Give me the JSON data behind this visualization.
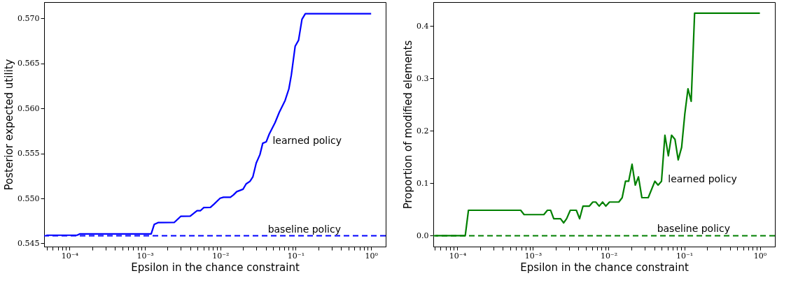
{
  "chart_data": [
    {
      "type": "line",
      "xlabel": "Epsilon in the chance constraint",
      "ylabel": "Posterior expected utility",
      "log": "x",
      "grid": false,
      "marker": "none",
      "xlim": [
        4.6e-05,
        1.56
      ],
      "ylim": [
        0.54465,
        0.5718
      ],
      "xticks": [
        {
          "value": 0.0001,
          "label": "10⁻⁴"
        },
        {
          "value": 0.001,
          "label": "10⁻³"
        },
        {
          "value": 0.01,
          "label": "10⁻²"
        },
        {
          "value": 0.1,
          "label": "10⁻¹"
        },
        {
          "value": 1,
          "label": "10⁰"
        },
        {
          "value": 5e-05,
          "label": null
        },
        {
          "value": 6e-05,
          "label": null
        },
        {
          "value": 7e-05,
          "label": null
        },
        {
          "value": 8e-05,
          "label": null
        },
        {
          "value": 9e-05,
          "label": null
        },
        {
          "value": 0.0002,
          "label": null
        },
        {
          "value": 0.0003,
          "label": null
        },
        {
          "value": 0.0004,
          "label": null
        },
        {
          "value": 0.0005,
          "label": null
        },
        {
          "value": 0.0006,
          "label": null
        },
        {
          "value": 0.0007,
          "label": null
        },
        {
          "value": 0.0008,
          "label": null
        },
        {
          "value": 0.0009,
          "label": null
        },
        {
          "value": 0.002,
          "label": null
        },
        {
          "value": 0.003,
          "label": null
        },
        {
          "value": 0.004,
          "label": null
        },
        {
          "value": 0.005,
          "label": null
        },
        {
          "value": 0.006,
          "label": null
        },
        {
          "value": 0.007,
          "label": null
        },
        {
          "value": 0.008,
          "label": null
        },
        {
          "value": 0.009,
          "label": null
        },
        {
          "value": 0.02,
          "label": null
        },
        {
          "value": 0.03,
          "label": null
        },
        {
          "value": 0.04,
          "label": null
        },
        {
          "value": 0.05,
          "label": null
        },
        {
          "value": 0.06,
          "label": null
        },
        {
          "value": 0.07,
          "label": null
        },
        {
          "value": 0.08,
          "label": null
        },
        {
          "value": 0.09,
          "label": null
        },
        {
          "value": 0.2,
          "label": null
        },
        {
          "value": 0.3,
          "label": null
        },
        {
          "value": 0.4,
          "label": null
        },
        {
          "value": 0.5,
          "label": null
        },
        {
          "value": 0.6,
          "label": null
        },
        {
          "value": 0.7,
          "label": null
        },
        {
          "value": 0.8,
          "label": null
        },
        {
          "value": 0.9,
          "label": null
        }
      ],
      "yticks": [
        {
          "value": 0.545,
          "label": "0.545"
        },
        {
          "value": 0.55,
          "label": "0.550"
        },
        {
          "value": 0.555,
          "label": "0.555"
        },
        {
          "value": 0.56,
          "label": "0.560"
        },
        {
          "value": 0.565,
          "label": "0.565"
        },
        {
          "value": 0.57,
          "label": "0.570"
        }
      ],
      "series": [
        {
          "color": "#0000ff",
          "line_style": "solid",
          "x": [
            4.93e-05,
            0.000126,
            0.000136,
            0.00121,
            0.00133,
            0.00149,
            0.00246,
            0.00298,
            0.00399,
            0.00491,
            0.00543,
            0.00604,
            0.00738,
            0.00822,
            0.00995,
            0.011,
            0.0136,
            0.015,
            0.0165,
            0.02,
            0.022,
            0.0247,
            0.027,
            0.0299,
            0.0335,
            0.0365,
            0.0406,
            0.0445,
            0.0531,
            0.0605,
            0.0722,
            0.0811,
            0.0875,
            0.0982,
            0.109,
            0.121,
            0.134,
            1.0
          ],
          "values": [
            0.54591,
            0.54591,
            0.54605,
            0.54605,
            0.54712,
            0.54731,
            0.54734,
            0.54801,
            0.54804,
            0.54863,
            0.54863,
            0.54898,
            0.549,
            0.54935,
            0.55002,
            0.55013,
            0.55013,
            0.5504,
            0.55075,
            0.55102,
            0.55161,
            0.5519,
            0.55239,
            0.55392,
            0.55486,
            0.55612,
            0.55628,
            0.55714,
            0.5584,
            0.55956,
            0.56087,
            0.56216,
            0.56372,
            0.56689,
            0.56756,
            0.56989,
            0.57051,
            0.57051
          ]
        }
      ],
      "ref_lines": [
        {
          "axis": "y",
          "value": 0.54585,
          "label": "baseline policy",
          "color": "#0000ff",
          "line_style": "dashed"
        }
      ],
      "annotations": [
        "learned policy"
      ]
    },
    {
      "type": "line",
      "xlabel": "Epsilon in the chance constraint",
      "ylabel": "Proportion of modified elements",
      "log": "x",
      "grid": false,
      "marker": "none",
      "xlim": [
        4.8e-05,
        1.58
      ],
      "ylim": [
        -0.0208,
        0.4457
      ],
      "xticks": [
        {
          "value": 0.0001,
          "label": "10⁻⁴"
        },
        {
          "value": 0.001,
          "label": "10⁻³"
        },
        {
          "value": 0.01,
          "label": "10⁻²"
        },
        {
          "value": 0.1,
          "label": "10⁻¹"
        },
        {
          "value": 1,
          "label": "10⁰"
        },
        {
          "value": 5e-05,
          "label": null
        },
        {
          "value": 6e-05,
          "label": null
        },
        {
          "value": 7e-05,
          "label": null
        },
        {
          "value": 8e-05,
          "label": null
        },
        {
          "value": 9e-05,
          "label": null
        },
        {
          "value": 0.0002,
          "label": null
        },
        {
          "value": 0.0003,
          "label": null
        },
        {
          "value": 0.0004,
          "label": null
        },
        {
          "value": 0.0005,
          "label": null
        },
        {
          "value": 0.0006,
          "label": null
        },
        {
          "value": 0.0007,
          "label": null
        },
        {
          "value": 0.0008,
          "label": null
        },
        {
          "value": 0.0009,
          "label": null
        },
        {
          "value": 0.002,
          "label": null
        },
        {
          "value": 0.003,
          "label": null
        },
        {
          "value": 0.004,
          "label": null
        },
        {
          "value": 0.005,
          "label": null
        },
        {
          "value": 0.006,
          "label": null
        },
        {
          "value": 0.007,
          "label": null
        },
        {
          "value": 0.008,
          "label": null
        },
        {
          "value": 0.009,
          "label": null
        },
        {
          "value": 0.02,
          "label": null
        },
        {
          "value": 0.03,
          "label": null
        },
        {
          "value": 0.04,
          "label": null
        },
        {
          "value": 0.05,
          "label": null
        },
        {
          "value": 0.06,
          "label": null
        },
        {
          "value": 0.07,
          "label": null
        },
        {
          "value": 0.08,
          "label": null
        },
        {
          "value": 0.09,
          "label": null
        },
        {
          "value": 0.2,
          "label": null
        },
        {
          "value": 0.3,
          "label": null
        },
        {
          "value": 0.4,
          "label": null
        },
        {
          "value": 0.5,
          "label": null
        },
        {
          "value": 0.6,
          "label": null
        },
        {
          "value": 0.7,
          "label": null
        },
        {
          "value": 0.8,
          "label": null
        },
        {
          "value": 0.9,
          "label": null
        }
      ],
      "yticks": [
        {
          "value": 0,
          "label": "0.0"
        },
        {
          "value": 0.1,
          "label": "0.1"
        },
        {
          "value": 0.2,
          "label": "0.2"
        },
        {
          "value": 0.3,
          "label": "0.3"
        },
        {
          "value": 0.4,
          "label": "0.4"
        }
      ],
      "series": [
        {
          "color": "#008000",
          "line_style": "solid",
          "x": [
            5.1e-05,
            0.000127,
            0.00014,
            0.000687,
            0.000762,
            0.00139,
            0.00155,
            0.00171,
            0.00188,
            0.00231,
            0.00254,
            0.00278,
            0.00311,
            0.00374,
            0.00413,
            0.00458,
            0.00556,
            0.00618,
            0.00676,
            0.0075,
            0.00832,
            0.00918,
            0.01026,
            0.01363,
            0.0151,
            0.0167,
            0.0184,
            0.0204,
            0.0225,
            0.0248,
            0.0275,
            0.0334,
            0.0409,
            0.0451,
            0.05,
            0.0555,
            0.0616,
            0.0679,
            0.0754,
            0.0831,
            0.0923,
            0.1017,
            0.112,
            0.1235,
            0.137,
            1.0
          ],
          "values": [
            0,
            0,
            0.0485,
            0.0485,
            0.0402,
            0.0402,
            0.0485,
            0.0485,
            0.0323,
            0.0323,
            0.0245,
            0.0323,
            0.0485,
            0.0485,
            0.0323,
            0.0564,
            0.0564,
            0.0642,
            0.0642,
            0.0564,
            0.0642,
            0.0564,
            0.0642,
            0.0642,
            0.0725,
            0.1039,
            0.1039,
            0.1363,
            0.0965,
            0.1122,
            0.0725,
            0.0725,
            0.1039,
            0.0965,
            0.1039,
            0.1917,
            0.1524,
            0.1917,
            0.1838,
            0.1446,
            0.1686,
            0.2323,
            0.2804,
            0.2564,
            0.4245,
            0.4245
          ]
        }
      ],
      "ref_lines": [
        {
          "axis": "y",
          "value": 0,
          "label": "baseline policy",
          "color": "#008000",
          "line_style": "dashed"
        }
      ],
      "annotations": [
        "learned policy"
      ]
    }
  ]
}
